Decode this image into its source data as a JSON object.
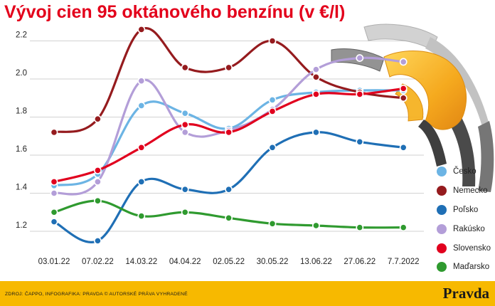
{
  "title": "Vývoj cien 95 oktánového benzínu (v €/l)",
  "footer": {
    "source": "ZDROJ: ČAPPO, INFOGRAFIKA: PRAVDA © AUTORSKÉ PRÁVA VYHRADENÉ",
    "brand": "Pravda",
    "background": "#f7b900"
  },
  "chart_data": {
    "type": "line",
    "categories": [
      "03.01.22",
      "07.02.22",
      "14.03.22",
      "04.04.22",
      "02.05.22",
      "30.05.22",
      "13.06.22",
      "27.06.22",
      "7.7.2022"
    ],
    "yticks": [
      "1.2",
      "1.4",
      "1.6",
      "1.8",
      "2.0",
      "2.2"
    ],
    "ylim": [
      1.13,
      2.3
    ],
    "grid": true,
    "legend_position": "right",
    "series": [
      {
        "name": "Česko",
        "color": "#6cb4e4",
        "values": [
          1.44,
          1.5,
          1.86,
          1.82,
          1.74,
          1.89,
          1.93,
          1.94,
          1.94
        ]
      },
      {
        "name": "Nemecko",
        "color": "#951b1e",
        "values": [
          1.72,
          1.79,
          2.26,
          2.06,
          2.06,
          2.2,
          2.01,
          1.93,
          1.9
        ]
      },
      {
        "name": "Poľsko",
        "color": "#1f6fb5",
        "values": [
          1.25,
          1.15,
          1.46,
          1.42,
          1.42,
          1.64,
          1.72,
          1.67,
          1.64
        ]
      },
      {
        "name": "Rakúsko",
        "color": "#b39ed8",
        "values": [
          1.4,
          1.46,
          1.99,
          1.72,
          1.73,
          1.84,
          2.05,
          2.11,
          2.09
        ]
      },
      {
        "name": "Slovensko",
        "color": "#e1001e",
        "values": [
          1.46,
          1.52,
          1.64,
          1.76,
          1.72,
          1.83,
          1.92,
          1.92,
          1.95
        ]
      },
      {
        "name": "Maďarsko",
        "color": "#2f9a2f",
        "values": [
          1.3,
          1.36,
          1.28,
          1.3,
          1.27,
          1.24,
          1.23,
          1.22,
          1.22
        ]
      }
    ]
  }
}
